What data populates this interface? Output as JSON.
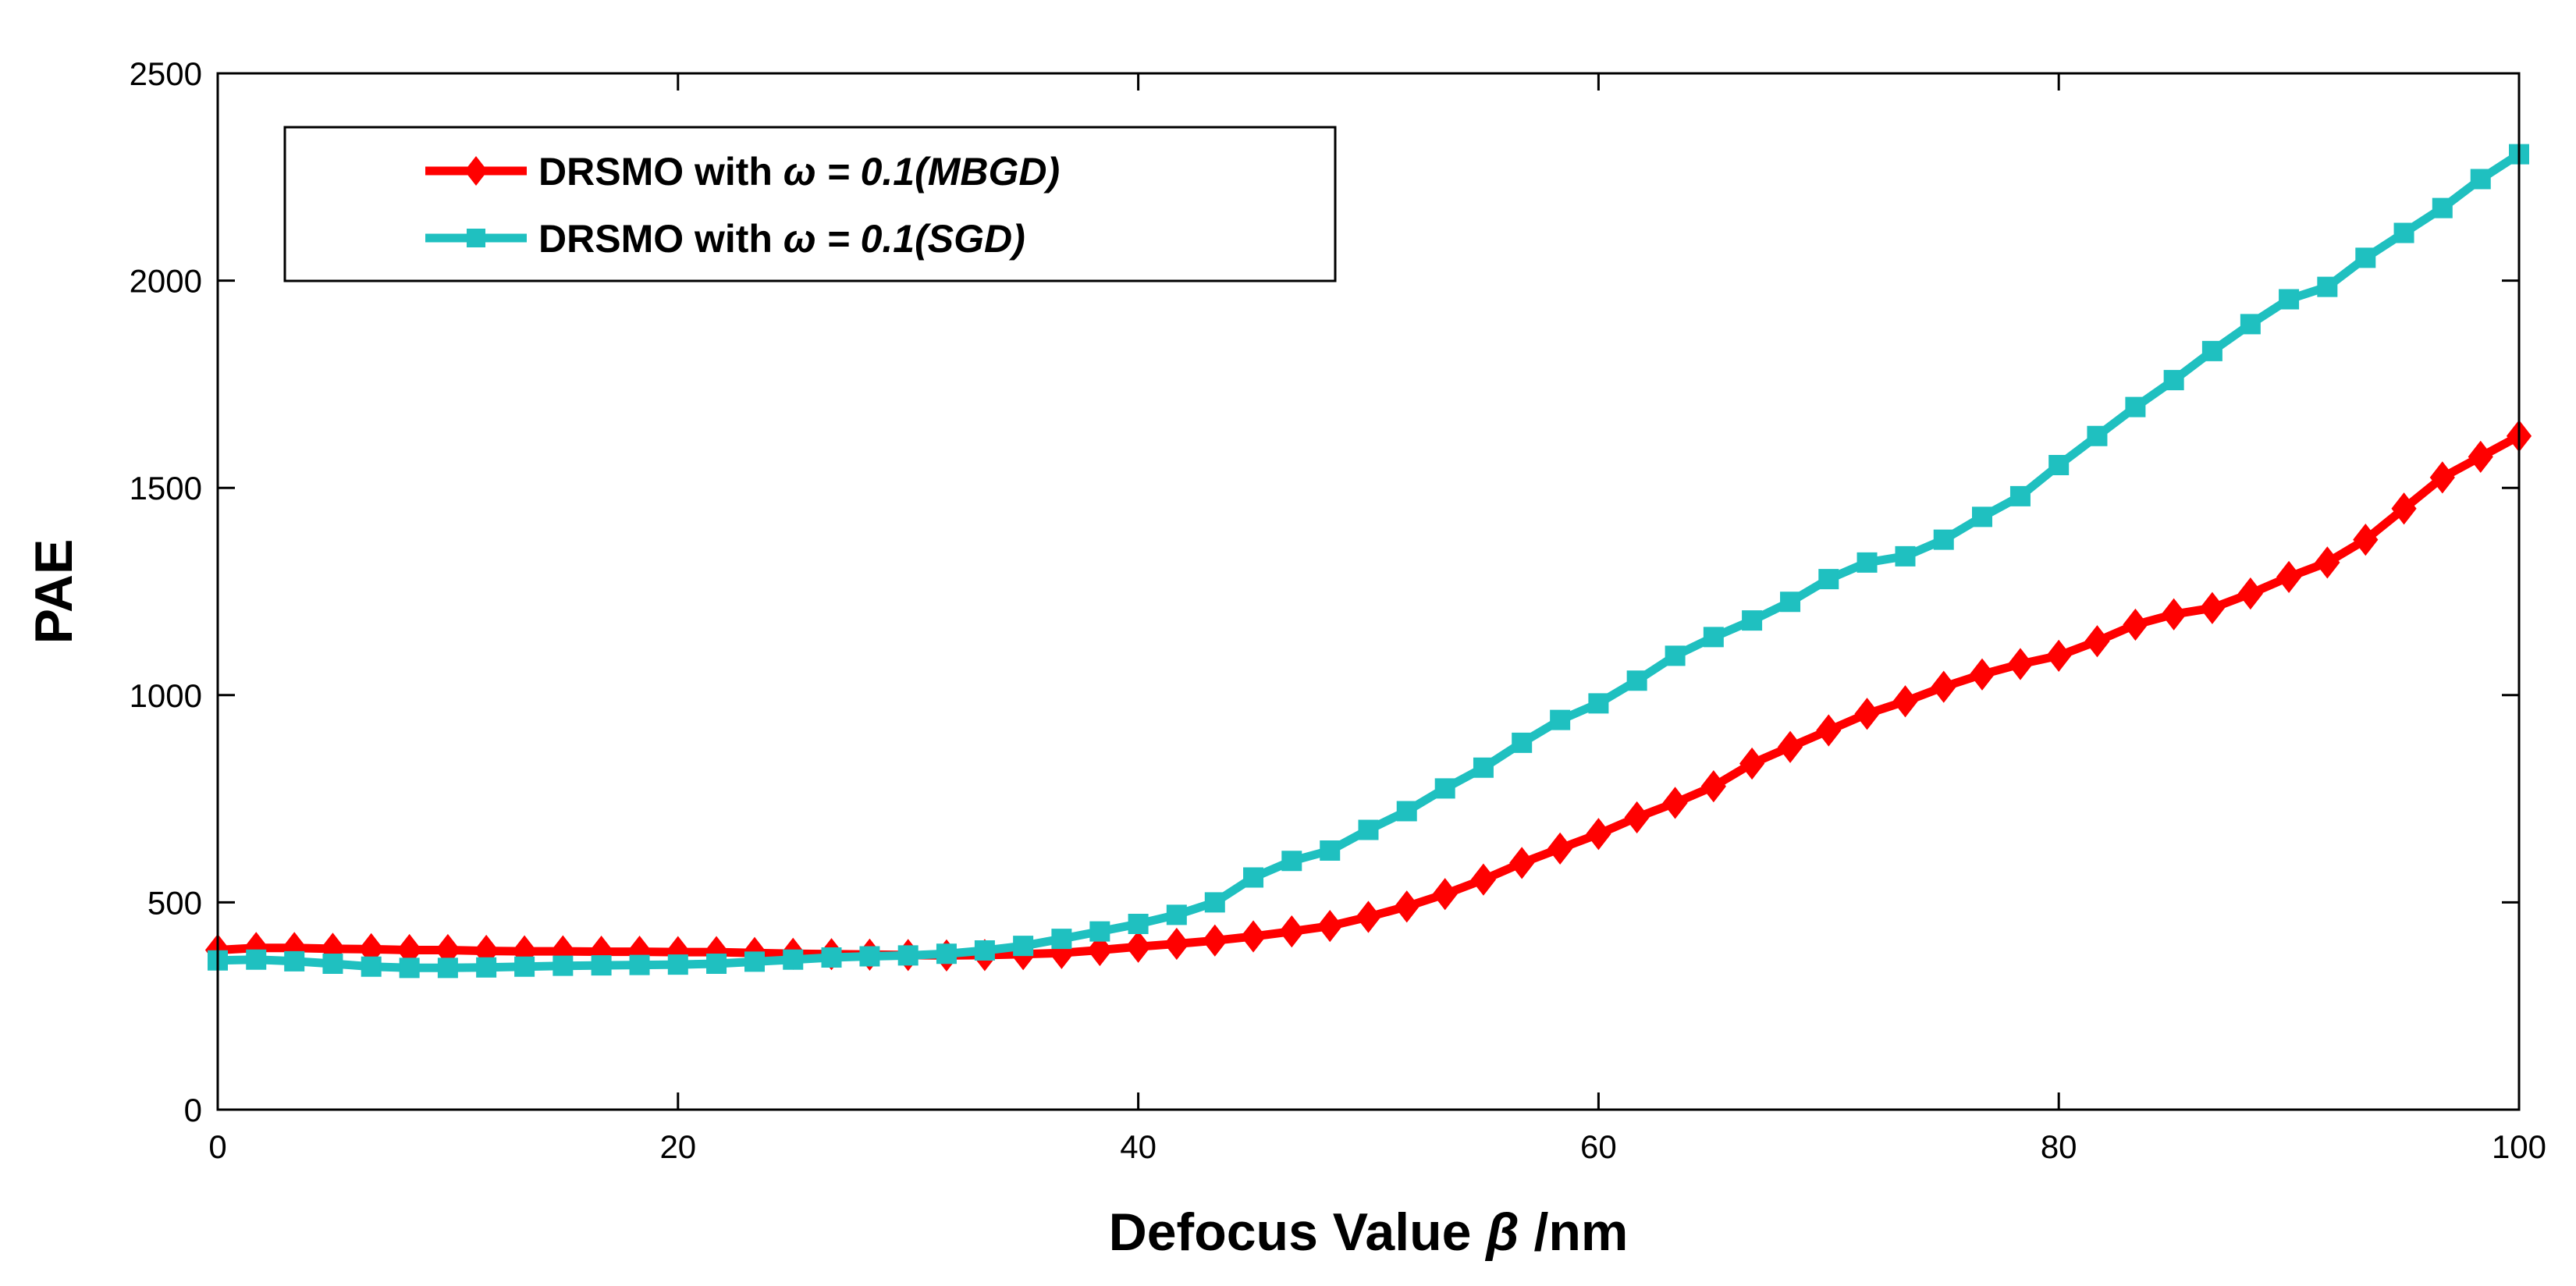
{
  "chart_data": {
    "type": "line",
    "title": "",
    "xlabel_prefix": "Defocus Value ",
    "xlabel_symbol": "β",
    "xlabel_suffix": " /nm",
    "ylabel": "PAE",
    "xlim": [
      0,
      100
    ],
    "ylim": [
      0,
      2500
    ],
    "xticks": [
      0,
      20,
      40,
      60,
      80,
      100
    ],
    "yticks": [
      0,
      500,
      1000,
      1500,
      2000,
      2500
    ],
    "grid": false,
    "legend_position": "top-left",
    "x": [
      0,
      1.67,
      3.33,
      5,
      6.67,
      8.33,
      10,
      11.67,
      13.33,
      15,
      16.67,
      18.33,
      20,
      21.67,
      23.33,
      25,
      26.67,
      28.33,
      30,
      31.67,
      33.33,
      35,
      36.67,
      38.33,
      40,
      41.67,
      43.33,
      45,
      46.67,
      48.33,
      50,
      51.67,
      53.33,
      55,
      56.67,
      58.33,
      60,
      61.67,
      63.33,
      65,
      66.67,
      68.33,
      70,
      71.67,
      73.33,
      75,
      76.67,
      78.33,
      80,
      81.67,
      83.33,
      85,
      86.67,
      88.33,
      90,
      91.67,
      93.33,
      95,
      96.67,
      98.33,
      100
    ],
    "series": [
      {
        "name": "MBGD",
        "legend_prefix": "DRSMO with ",
        "legend_math": "ω = 0.1(MBGD)",
        "color": "#ff0000",
        "marker": "diamond",
        "values": [
          385,
          390,
          390,
          388,
          387,
          385,
          385,
          383,
          382,
          382,
          381,
          381,
          380,
          380,
          378,
          376,
          375,
          374,
          373,
          372,
          373,
          375,
          378,
          385,
          393,
          400,
          408,
          418,
          430,
          443,
          465,
          490,
          520,
          555,
          595,
          630,
          665,
          705,
          740,
          780,
          835,
          875,
          915,
          955,
          985,
          1020,
          1050,
          1075,
          1095,
          1130,
          1170,
          1195,
          1210,
          1245,
          1285,
          1320,
          1375,
          1450,
          1525,
          1575,
          1625
        ]
      },
      {
        "name": "SGD",
        "legend_prefix": "DRSMO with ",
        "legend_math": "ω = 0.1(SGD)",
        "color": "#1fc0c0",
        "marker": "square",
        "values": [
          360,
          362,
          358,
          352,
          345,
          342,
          342,
          343,
          345,
          347,
          348,
          349,
          350,
          352,
          357,
          362,
          367,
          370,
          372,
          376,
          384,
          395,
          412,
          430,
          448,
          470,
          500,
          560,
          600,
          625,
          675,
          720,
          775,
          825,
          885,
          940,
          980,
          1035,
          1095,
          1140,
          1180,
          1225,
          1280,
          1320,
          1335,
          1375,
          1430,
          1480,
          1555,
          1625,
          1695,
          1760,
          1830,
          1895,
          1955,
          1985,
          2055,
          2115,
          2175,
          2245,
          2305
        ]
      }
    ]
  }
}
